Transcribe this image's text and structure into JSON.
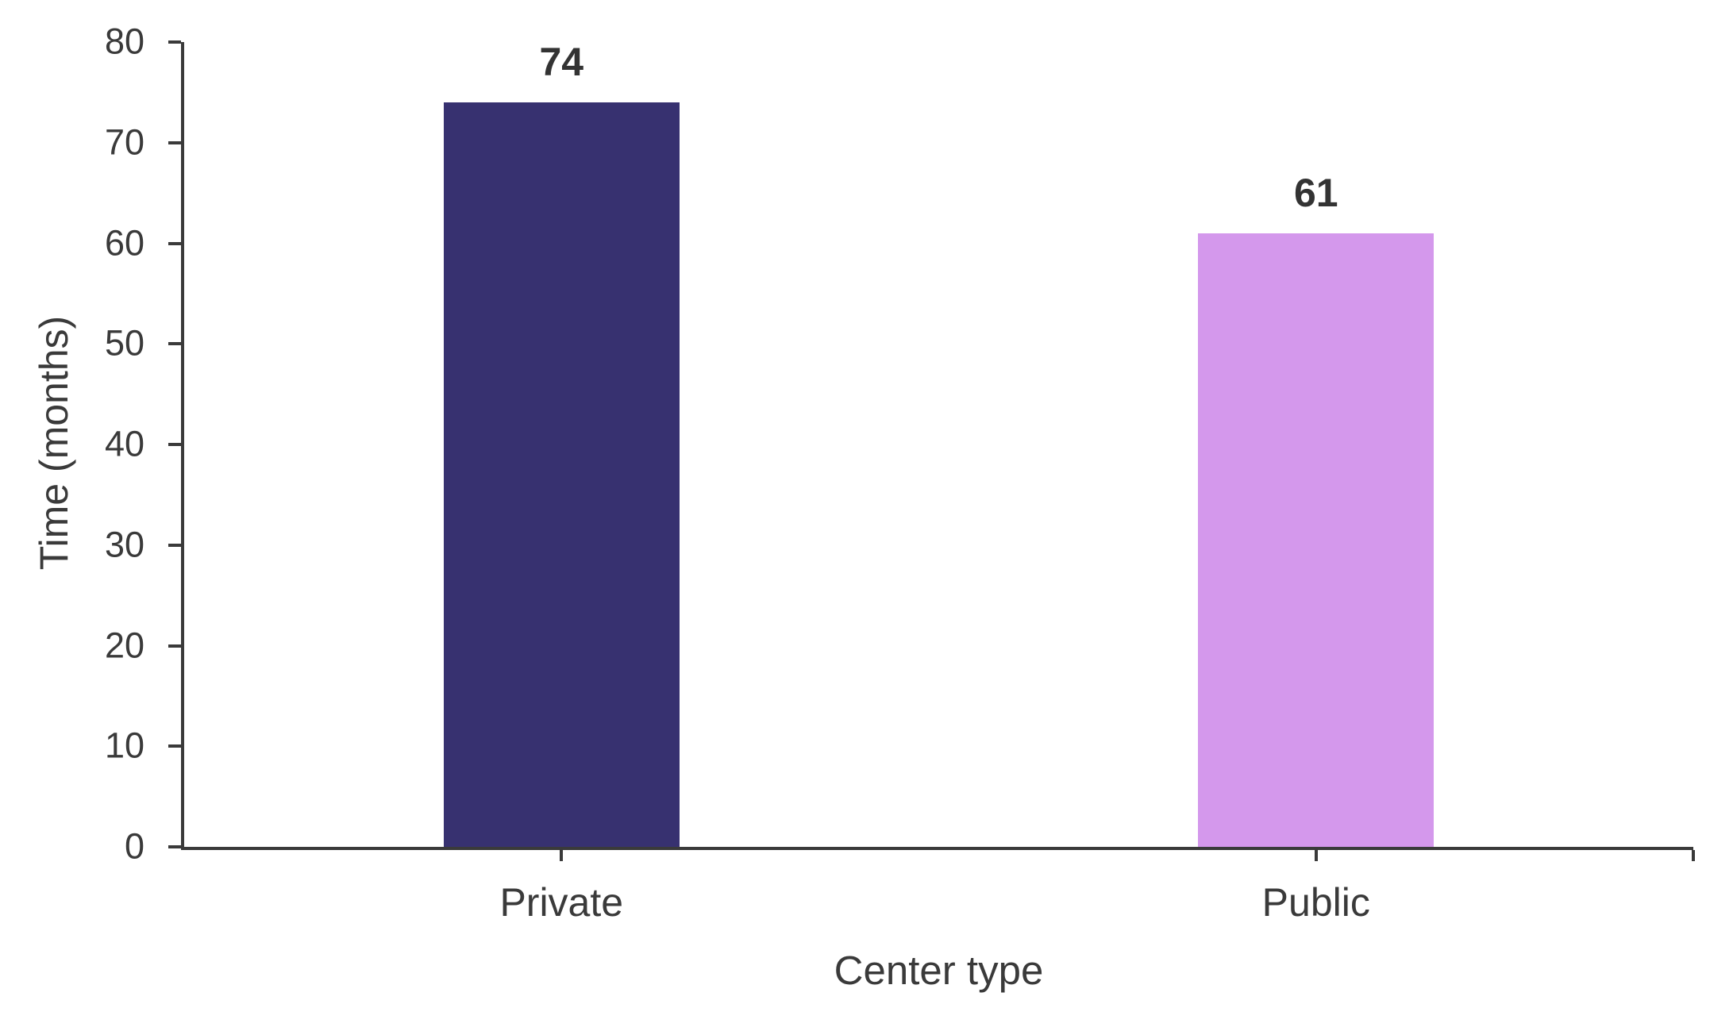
{
  "chart_data": {
    "type": "bar",
    "title": "",
    "xlabel": "Center type",
    "ylabel": "Time (months)",
    "categories": [
      "Private",
      "Public"
    ],
    "values": [
      74,
      61
    ],
    "value_labels": [
      "74",
      "61"
    ],
    "bar_colors": [
      "#373170",
      "#d498ec"
    ],
    "ylim": [
      0,
      80
    ],
    "ytick_step": 10,
    "ytick_labels": [
      "0",
      "10",
      "20",
      "30",
      "40",
      "50",
      "60",
      "70",
      "80"
    ],
    "grid": false,
    "legend": "none"
  },
  "colors": {
    "axis": "#3a3a3a",
    "text": "#3a3a3a",
    "value_label": "#333333",
    "bar_private": "#373170",
    "bar_public": "#d498ec",
    "background": "#ffffff"
  }
}
